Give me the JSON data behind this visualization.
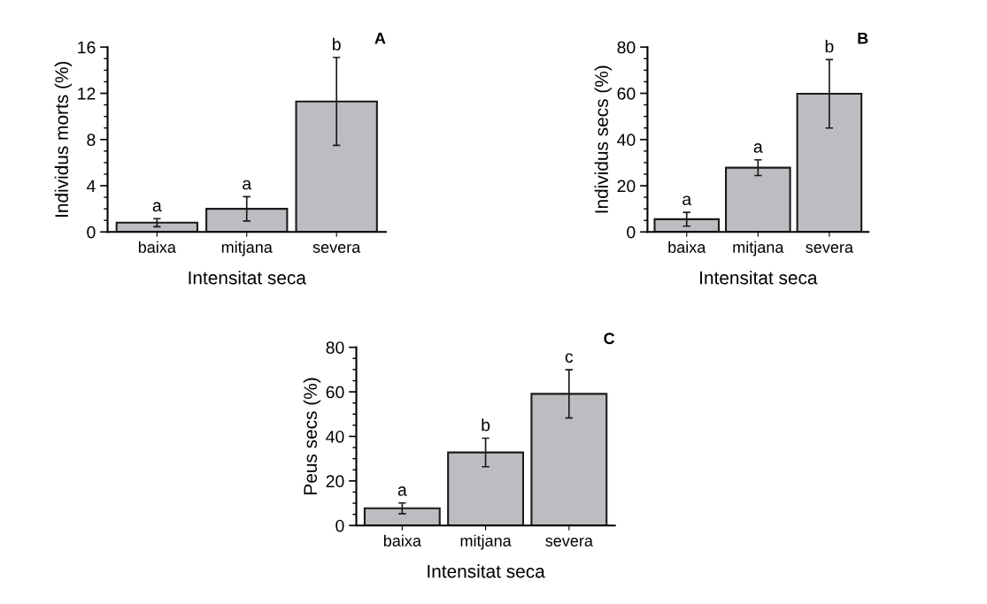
{
  "chart_data": [
    {
      "type": "bar",
      "title": "A",
      "xlabel": "Intensitat seca",
      "ylabel": "Individus morts (%)",
      "categories": [
        "baixa",
        "mitjana",
        "severa"
      ],
      "values": [
        0.8,
        2.0,
        11.3
      ],
      "errors": [
        0.35,
        1.05,
        3.8
      ],
      "color": "#bcbdc1",
      "ylim": [
        0,
        16
      ],
      "yticks": [
        0,
        {
          "value": 1,
          "label": null
        },
        {
          "value": 2,
          "label": null
        },
        {
          "value": 3,
          "label": null
        },
        4,
        {
          "value": 5,
          "label": null
        },
        {
          "value": 6,
          "label": null
        },
        {
          "value": 7,
          "label": null
        },
        8,
        {
          "value": 9,
          "label": null
        },
        {
          "value": 10,
          "label": null
        },
        {
          "value": 11,
          "label": null
        },
        12,
        {
          "value": 13,
          "label": null
        },
        {
          "value": 14,
          "label": null
        },
        {
          "value": 15,
          "label": null
        },
        16
      ],
      "grid": false,
      "legend": false,
      "annotations": [
        {
          "text": "a",
          "x": "baixa",
          "y": 1.15
        },
        {
          "text": "a",
          "x": "mitjana",
          "y": 3.05
        },
        {
          "text": "b",
          "x": "severa",
          "y": 15.1
        }
      ]
    },
    {
      "type": "bar",
      "title": "B",
      "xlabel": "Intensitat seca",
      "ylabel": "Individus secs (%)",
      "categories": [
        "baixa",
        "mitjana",
        "severa"
      ],
      "values": [
        5.5,
        27.8,
        59.8
      ],
      "errors": [
        3.0,
        3.4,
        14.8
      ],
      "color": "#bcbdc1",
      "ylim": [
        0,
        80
      ],
      "yticks": [
        0,
        {
          "value": 5,
          "label": null
        },
        {
          "value": 10,
          "label": null
        },
        {
          "value": 15,
          "label": null
        },
        20,
        {
          "value": 25,
          "label": null
        },
        {
          "value": 30,
          "label": null
        },
        {
          "value": 35,
          "label": null
        },
        40,
        {
          "value": 45,
          "label": null
        },
        {
          "value": 50,
          "label": null
        },
        {
          "value": 55,
          "label": null
        },
        60,
        {
          "value": 65,
          "label": null
        },
        {
          "value": 70,
          "label": null
        },
        {
          "value": 75,
          "label": null
        },
        80
      ],
      "grid": false,
      "legend": false,
      "annotations": [
        {
          "text": "a",
          "x": "baixa",
          "y": 8.5
        },
        {
          "text": "a",
          "x": "mitjana",
          "y": 31.2
        },
        {
          "text": "b",
          "x": "severa",
          "y": 74.6
        }
      ]
    },
    {
      "type": "bar",
      "title": "C",
      "xlabel": "Intensitat seca",
      "ylabel": "Peus secs (%)",
      "categories": [
        "baixa",
        "mitjana",
        "severa"
      ],
      "values": [
        7.7,
        32.8,
        59.1
      ],
      "errors": [
        2.4,
        6.4,
        10.8
      ],
      "color": "#bcbdc1",
      "ylim": [
        0,
        80
      ],
      "yticks": [
        0,
        {
          "value": 5,
          "label": null
        },
        {
          "value": 10,
          "label": null
        },
        {
          "value": 15,
          "label": null
        },
        20,
        {
          "value": 25,
          "label": null
        },
        {
          "value": 30,
          "label": null
        },
        {
          "value": 35,
          "label": null
        },
        40,
        {
          "value": 45,
          "label": null
        },
        {
          "value": 50,
          "label": null
        },
        {
          "value": 55,
          "label": null
        },
        60,
        {
          "value": 65,
          "label": null
        },
        {
          "value": 70,
          "label": null
        },
        {
          "value": 75,
          "label": null
        },
        80
      ],
      "grid": false,
      "legend": false,
      "annotations": [
        {
          "text": "a",
          "x": "baixa",
          "y": 10.1
        },
        {
          "text": "b",
          "x": "mitjana",
          "y": 39.2
        },
        {
          "text": "c",
          "x": "severa",
          "y": 69.9
        }
      ]
    }
  ]
}
